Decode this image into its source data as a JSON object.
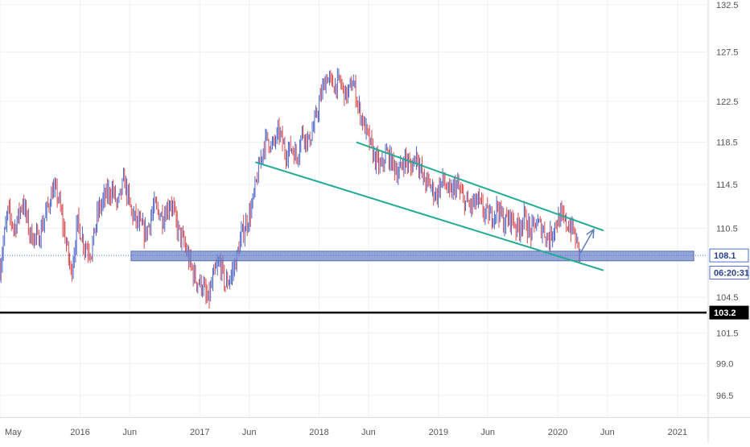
{
  "chart_data": {
    "type": "candlestick",
    "title": "",
    "xlabel": "",
    "ylabel": "",
    "x_range": [
      "2015-05-01",
      "2021-03-31"
    ],
    "ylim": [
      94.8,
      133.0
    ],
    "y_scale": "log",
    "grid": true,
    "x_ticks": [
      {
        "date": "2015-05-01",
        "label": "May"
      },
      {
        "date": "2016-01-01",
        "label": "2016"
      },
      {
        "date": "2016-06-01",
        "label": "Jun"
      },
      {
        "date": "2017-01-01",
        "label": "2017"
      },
      {
        "date": "2017-06-01",
        "label": "Jun"
      },
      {
        "date": "2018-01-01",
        "label": "2018"
      },
      {
        "date": "2018-06-01",
        "label": "Jun"
      },
      {
        "date": "2019-01-01",
        "label": "2019"
      },
      {
        "date": "2019-06-01",
        "label": "Jun"
      },
      {
        "date": "2020-01-01",
        "label": "2020"
      },
      {
        "date": "2020-06-01",
        "label": "Jun"
      },
      {
        "date": "2021-01-01",
        "label": "2021"
      }
    ],
    "y_ticks": [
      "132.5",
      "127.5",
      "122.5",
      "118.5",
      "114.5",
      "110.5",
      "104.5",
      "101.5",
      "99.0",
      "96.5"
    ],
    "price_path": [
      [
        "2015-05-01",
        107.0
      ],
      [
        "2015-05-25",
        112.0
      ],
      [
        "2015-06-15",
        110.5
      ],
      [
        "2015-07-10",
        113.0
      ],
      [
        "2015-08-01",
        110.0
      ],
      [
        "2015-08-25",
        109.5
      ],
      [
        "2015-09-15",
        111.5
      ],
      [
        "2015-10-10",
        114.0
      ],
      [
        "2015-10-25",
        113.5
      ],
      [
        "2015-11-15",
        110.0
      ],
      [
        "2015-12-05",
        106.5
      ],
      [
        "2015-12-25",
        111.0
      ],
      [
        "2016-01-15",
        109.0
      ],
      [
        "2016-02-05",
        108.5
      ],
      [
        "2016-02-25",
        112.0
      ],
      [
        "2016-03-20",
        113.5
      ],
      [
        "2016-04-10",
        114.0
      ],
      [
        "2016-04-25",
        112.5
      ],
      [
        "2016-05-15",
        115.0
      ],
      [
        "2016-06-05",
        112.0
      ],
      [
        "2016-06-25",
        111.0
      ],
      [
        "2016-07-20",
        110.0
      ],
      [
        "2016-08-15",
        112.5
      ],
      [
        "2016-09-10",
        111.5
      ],
      [
        "2016-10-05",
        113.0
      ],
      [
        "2016-10-25",
        110.5
      ],
      [
        "2016-11-15",
        109.0
      ],
      [
        "2016-12-01",
        107.5
      ],
      [
        "2016-12-20",
        106.0
      ],
      [
        "2017-01-10",
        105.5
      ],
      [
        "2017-01-25",
        104.0
      ],
      [
        "2017-02-15",
        106.5
      ],
      [
        "2017-03-05",
        107.5
      ],
      [
        "2017-03-20",
        105.5
      ],
      [
        "2017-04-10",
        106.5
      ],
      [
        "2017-04-25",
        108.0
      ],
      [
        "2017-05-10",
        110.0
      ],
      [
        "2017-05-25",
        111.0
      ],
      [
        "2017-06-10",
        112.5
      ],
      [
        "2017-06-25",
        115.0
      ],
      [
        "2017-07-10",
        117.5
      ],
      [
        "2017-07-25",
        119.0
      ],
      [
        "2017-08-10",
        118.0
      ],
      [
        "2017-09-01",
        119.5
      ],
      [
        "2017-09-20",
        117.5
      ],
      [
        "2017-10-10",
        118.0
      ],
      [
        "2017-10-25",
        117.0
      ],
      [
        "2017-11-10",
        119.5
      ],
      [
        "2017-12-01",
        118.5
      ],
      [
        "2017-12-20",
        120.5
      ],
      [
        "2018-01-10",
        123.5
      ],
      [
        "2018-01-25",
        125.0
      ],
      [
        "2018-02-15",
        124.0
      ],
      [
        "2018-03-05",
        124.5
      ],
      [
        "2018-03-25",
        123.0
      ],
      [
        "2018-04-15",
        124.5
      ],
      [
        "2018-05-01",
        122.0
      ],
      [
        "2018-05-20",
        120.0
      ],
      [
        "2018-06-05",
        118.5
      ],
      [
        "2018-06-20",
        117.0
      ],
      [
        "2018-07-10",
        116.0
      ],
      [
        "2018-07-25",
        117.5
      ],
      [
        "2018-08-15",
        116.5
      ],
      [
        "2018-09-01",
        115.5
      ],
      [
        "2018-09-20",
        117.0
      ],
      [
        "2018-10-10",
        116.0
      ],
      [
        "2018-10-25",
        117.5
      ],
      [
        "2018-11-15",
        115.0
      ],
      [
        "2018-12-05",
        114.5
      ],
      [
        "2018-12-25",
        113.5
      ],
      [
        "2019-01-15",
        115.0
      ],
      [
        "2019-02-05",
        113.5
      ],
      [
        "2019-02-25",
        114.5
      ],
      [
        "2019-03-20",
        113.0
      ],
      [
        "2019-04-10",
        112.5
      ],
      [
        "2019-05-01",
        113.0
      ],
      [
        "2019-05-20",
        112.0
      ],
      [
        "2019-06-10",
        111.5
      ],
      [
        "2019-07-01",
        112.5
      ],
      [
        "2019-07-20",
        111.0
      ],
      [
        "2019-08-10",
        111.5
      ],
      [
        "2019-09-01",
        110.5
      ],
      [
        "2019-09-20",
        111.5
      ],
      [
        "2019-10-10",
        110.0
      ],
      [
        "2019-10-25",
        111.0
      ],
      [
        "2019-11-15",
        110.5
      ],
      [
        "2019-12-05",
        109.5
      ],
      [
        "2019-12-25",
        111.0
      ],
      [
        "2020-01-10",
        111.5
      ],
      [
        "2020-01-25",
        111.0
      ],
      [
        "2020-02-15",
        110.5
      ],
      [
        "2020-03-01",
        109.0
      ],
      [
        "2020-03-10",
        108.1
      ]
    ],
    "lines": [
      {
        "name": "upper-channel",
        "color": "#22ab94",
        "from": [
          "2018-04-25",
          118.5
        ],
        "to": [
          "2020-05-20",
          110.3
        ]
      },
      {
        "name": "lower-channel",
        "color": "#22ab94",
        "from": [
          "2017-06-20",
          116.6
        ],
        "to": [
          "2020-05-20",
          106.8
        ]
      },
      {
        "name": "support-line",
        "color": "#000000",
        "from": [
          "2015-05-01",
          103.2
        ],
        "to": [
          "2021-03-31",
          103.2
        ]
      }
    ],
    "arrow": {
      "color": "#5b7bb8",
      "from": [
        "2020-03-10",
        108.3
      ],
      "to": [
        "2020-04-20",
        110.4
      ]
    },
    "support_zone": {
      "color": "#6f86c9",
      "from": "2016-06-05",
      "to": "2021-02-20",
      "low": 107.7,
      "high": 108.4
    },
    "last_price_line": {
      "color": "#4f6fd6",
      "value": 108.1
    },
    "price_labels": [
      {
        "text": "108.1",
        "value": 108.1,
        "bg": "#ffffff",
        "fg": "#2a3f8f",
        "border": "#4f6fd6"
      },
      {
        "text": "06:20:31",
        "value": 106.6,
        "bg": "#ffffff",
        "fg": "#2a3f8f",
        "border": "#4f6fd6"
      },
      {
        "text": "103.2",
        "value": 103.2,
        "bg": "#000000",
        "fg": "#ffffff",
        "border": "#000000"
      }
    ],
    "colors": {
      "up": "#4a62c7",
      "down": "#d7494f",
      "grid": "#eef1f5",
      "axis_text": "#555555"
    }
  }
}
